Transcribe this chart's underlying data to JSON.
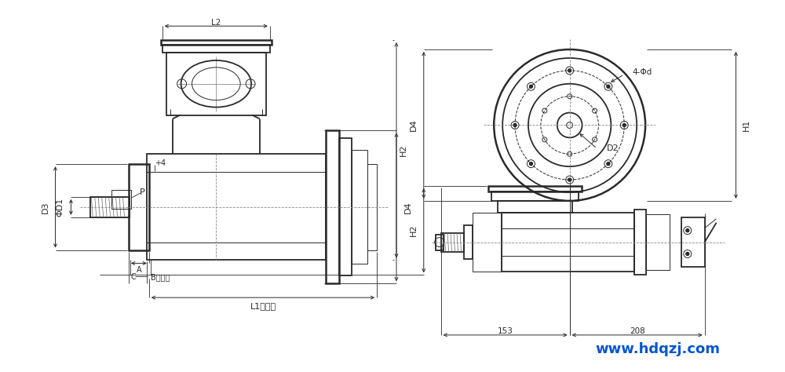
{
  "bg_color": "#ffffff",
  "line_color": "#2a2a2a",
  "blue_color": "#0055cc",
  "website": "www.hdqzj.com",
  "dim_153": "153",
  "dim_208": "208",
  "labels": {
    "L2": "L2",
    "L1": "L1工作时",
    "H2": "H2",
    "H1": "H1",
    "D3": "D3",
    "D1": "ΦD1",
    "D4": "D4",
    "D2": "D2",
    "d": "4-Φd",
    "4": "4",
    "P": "P",
    "A": "A",
    "B": "B工作时",
    "C": "C"
  }
}
